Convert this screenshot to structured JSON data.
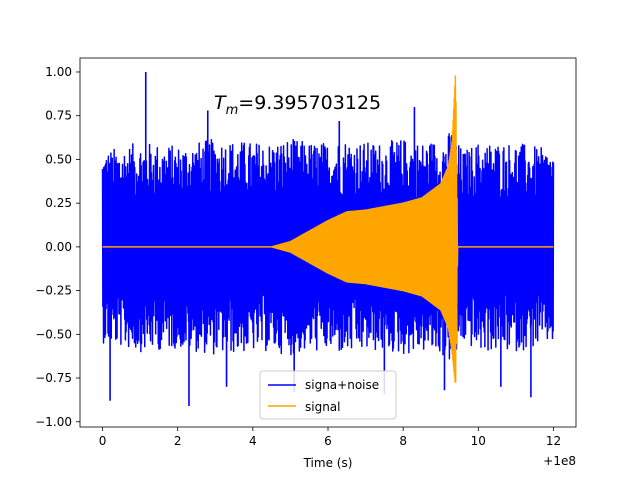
{
  "chart_data": {
    "type": "line",
    "title": "",
    "annotation": {
      "symbol": "T",
      "subscript": "m",
      "value_text": "=9.395703125"
    },
    "xlabel": "Time (s)",
    "ylabel": "",
    "x_offset_text": "+1e8",
    "xlim": [
      -0.6,
      12.6
    ],
    "ylim": [
      -1.03,
      1.08
    ],
    "xticks": [
      0,
      2,
      4,
      6,
      8,
      10,
      12
    ],
    "xtick_labels": [
      "0",
      "2",
      "4",
      "6",
      "8",
      "10",
      "12"
    ],
    "yticks": [
      -1.0,
      -0.75,
      -0.5,
      -0.25,
      0.0,
      0.25,
      0.5,
      0.75,
      1.0
    ],
    "ytick_labels": [
      "−1.00",
      "−0.75",
      "−0.50",
      "−0.25",
      "0.00",
      "0.25",
      "0.50",
      "0.75",
      "1.00"
    ],
    "grid": false,
    "legend_position": "lower center",
    "series": [
      {
        "name": "signa+noise",
        "color": "#0000ff",
        "envelope_x": [
          0,
          1,
          2,
          3,
          4,
          4.5,
          5,
          5.5,
          6,
          6.5,
          7,
          7.5,
          8,
          8.5,
          9,
          9.2,
          9.35,
          9.45,
          9.6,
          10,
          11,
          12
        ],
        "envelope_upper": [
          0.55,
          0.6,
          0.58,
          0.62,
          0.6,
          0.6,
          0.62,
          0.6,
          0.6,
          0.62,
          0.6,
          0.6,
          0.62,
          0.6,
          0.62,
          0.65,
          0.7,
          0.6,
          0.55,
          0.6,
          0.6,
          0.55
        ],
        "envelope_lower": [
          -0.55,
          -0.6,
          -0.58,
          -0.62,
          -0.6,
          -0.6,
          -0.62,
          -0.6,
          -0.6,
          -0.62,
          -0.6,
          -0.6,
          -0.62,
          -0.6,
          -0.62,
          -0.65,
          -0.7,
          -0.6,
          -0.55,
          -0.6,
          -0.6,
          -0.55
        ],
        "peaks_x": [
          1.15,
          0.2,
          2.3,
          3.3,
          5.1,
          7.5,
          9.1,
          10.6,
          11.4,
          2.8,
          6.3,
          8.3
        ],
        "peaks_y": [
          1.0,
          -0.88,
          -0.91,
          -0.8,
          -0.83,
          -0.84,
          -0.82,
          -0.8,
          -0.86,
          0.78,
          0.72,
          0.8
        ]
      },
      {
        "name": "signal",
        "color": "#ffa500",
        "envelope_x": [
          0,
          4.5,
          5.0,
          5.5,
          6.0,
          6.5,
          7.0,
          8.0,
          8.5,
          9.0,
          9.2,
          9.3,
          9.395703125,
          9.45,
          9.6,
          12
        ],
        "envelope_upper": [
          0.0,
          0.0,
          0.03,
          0.09,
          0.15,
          0.2,
          0.21,
          0.25,
          0.28,
          0.36,
          0.46,
          0.6,
          1.0,
          0.0,
          0.0,
          0.0
        ],
        "envelope_lower": [
          0.0,
          0.0,
          -0.03,
          -0.09,
          -0.15,
          -0.2,
          -0.21,
          -0.25,
          -0.28,
          -0.36,
          -0.46,
          -0.6,
          -0.8,
          0.0,
          0.0,
          0.0
        ]
      }
    ]
  }
}
